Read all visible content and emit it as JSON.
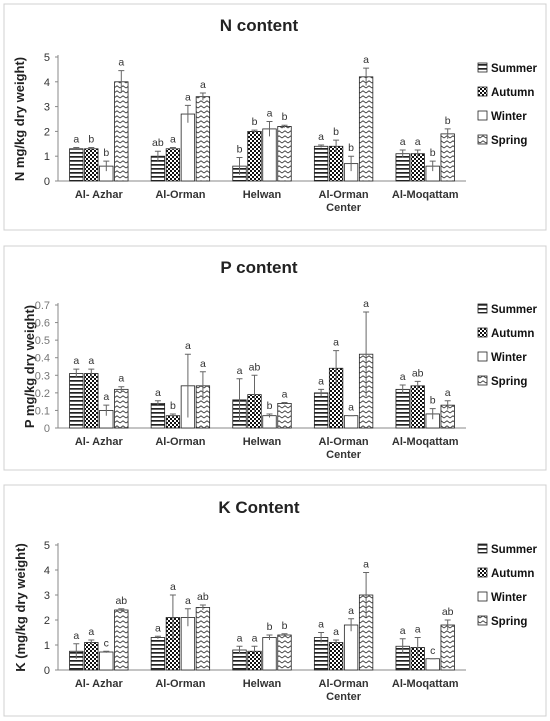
{
  "series_styles": [
    "hstripe",
    "checker",
    "blank",
    "zigzag"
  ],
  "chart_data": [
    {
      "type": "bar",
      "title": "N content",
      "ylabel": "N mg/kg dry weight)",
      "categories": [
        "Al- Azhar",
        "Al-Orman",
        "Helwan",
        "Al-Orman Center",
        "Al-Moqattam"
      ],
      "category_lines": [
        [
          "Al- Azhar"
        ],
        [
          "Al-Orman"
        ],
        [
          "Helwan"
        ],
        [
          "Al-Orman",
          "Center"
        ],
        [
          "Al-Moqattam"
        ]
      ],
      "ylim": [
        0,
        5
      ],
      "ticks": [
        "0",
        "1",
        "2",
        "3",
        "4",
        "5"
      ],
      "tick_values": [
        0,
        1,
        2,
        3,
        4,
        5
      ],
      "legend_position": "right",
      "series": [
        {
          "name": "Summer",
          "values": [
            1.3,
            1.0,
            0.6,
            1.4,
            1.1
          ],
          "errors": [
            0.05,
            0.2,
            0.35,
            0.05,
            0.15
          ],
          "labels": [
            "a",
            "ab",
            "b",
            "a",
            "a"
          ]
        },
        {
          "name": "Autumn",
          "values": [
            1.3,
            1.3,
            2.0,
            1.4,
            1.1
          ],
          "errors": [
            0.05,
            0.05,
            0.05,
            0.25,
            0.15
          ],
          "labels": [
            "b",
            "a",
            "b",
            "b",
            "a"
          ]
        },
        {
          "name": "Winter",
          "values": [
            0.6,
            2.7,
            2.1,
            0.7,
            0.6
          ],
          "errors": [
            0.2,
            0.35,
            0.3,
            0.3,
            0.2
          ],
          "labels": [
            "b",
            "a",
            "a",
            "b",
            "b"
          ]
        },
        {
          "name": "Spring",
          "values": [
            4.0,
            3.4,
            2.2,
            4.2,
            1.9
          ],
          "errors": [
            0.45,
            0.15,
            0.05,
            0.35,
            0.2
          ],
          "labels": [
            "a",
            "a",
            "b",
            "a",
            "b"
          ]
        }
      ]
    },
    {
      "type": "bar",
      "title": "P content",
      "ylabel": "P mg/kg dry weight)",
      "categories": [
        "Al- Azhar",
        "Al-Orman",
        "Helwan",
        "Al-Orman Center",
        "Al-Moqattam"
      ],
      "category_lines": [
        [
          "Al- Azhar"
        ],
        [
          "Al-Orman"
        ],
        [
          "Helwan"
        ],
        [
          "Al-Orman",
          "Center"
        ],
        [
          "Al-Moqattam"
        ]
      ],
      "ylim": [
        0,
        0.7
      ],
      "ticks": [
        "0",
        "0.1",
        "0.2",
        "0.3",
        "0.4",
        "0.5",
        "0.6",
        "0.7"
      ],
      "tick_values": [
        0,
        0.1,
        0.2,
        0.3,
        0.4,
        0.5,
        0.6,
        0.7
      ],
      "legend_position": "right",
      "series": [
        {
          "name": "Summer",
          "values": [
            0.31,
            0.14,
            0.16,
            0.2,
            0.22
          ],
          "errors": [
            0.025,
            0.015,
            0.12,
            0.02,
            0.025
          ],
          "labels": [
            "a",
            "a",
            "a",
            "a",
            "a"
          ]
        },
        {
          "name": "Autumn",
          "values": [
            0.31,
            0.07,
            0.19,
            0.34,
            0.24
          ],
          "errors": [
            0.025,
            0.01,
            0.11,
            0.1,
            0.025
          ],
          "labels": [
            "a",
            "b",
            "ab",
            "a",
            "ab"
          ]
        },
        {
          "name": "Winter",
          "values": [
            0.1,
            0.24,
            0.07,
            0.07,
            0.08
          ],
          "errors": [
            0.03,
            0.18,
            0.01,
            0.0,
            0.03
          ],
          "labels": [
            "a",
            "a",
            "b",
            "a",
            "b"
          ]
        },
        {
          "name": "Spring",
          "values": [
            0.22,
            0.24,
            0.14,
            0.42,
            0.13
          ],
          "errors": [
            0.015,
            0.08,
            0.005,
            0.24,
            0.025
          ],
          "labels": [
            "a",
            "a",
            "a",
            "a",
            "a"
          ]
        }
      ]
    },
    {
      "type": "bar",
      "title": "K Content",
      "ylabel": "K (mg/kg dry weight)",
      "categories": [
        "Al- Azhar",
        "Al-Orman",
        "Helwan",
        "Al-Orman Center",
        "Al-Moqattam"
      ],
      "category_lines": [
        [
          "Al- Azhar"
        ],
        [
          "Al-Orman"
        ],
        [
          "Helwan"
        ],
        [
          "Al-Orman",
          "Center"
        ],
        [
          "Al-Moqattam"
        ]
      ],
      "ylim": [
        0,
        5
      ],
      "ticks": [
        "0",
        "1",
        "2",
        "3",
        "4",
        "5"
      ],
      "tick_values": [
        0,
        1,
        2,
        3,
        4,
        5
      ],
      "legend_position": "right",
      "series": [
        {
          "name": "Summer",
          "values": [
            0.75,
            1.3,
            0.8,
            1.3,
            0.95
          ],
          "errors": [
            0.3,
            0.05,
            0.15,
            0.2,
            0.3
          ],
          "labels": [
            "a",
            "a",
            "a",
            "a",
            "a"
          ]
        },
        {
          "name": "Autumn",
          "values": [
            1.1,
            2.1,
            0.75,
            1.1,
            0.9
          ],
          "errors": [
            0.1,
            0.9,
            0.2,
            0.1,
            0.4
          ],
          "labels": [
            "a",
            "a",
            "a",
            "a",
            "a"
          ]
        },
        {
          "name": "Winter",
          "values": [
            0.72,
            2.1,
            1.3,
            1.8,
            0.45
          ],
          "errors": [
            0.03,
            0.35,
            0.1,
            0.25,
            0.0
          ],
          "labels": [
            "c",
            "a",
            "b",
            "a",
            "c"
          ]
        },
        {
          "name": "Spring",
          "values": [
            2.4,
            2.5,
            1.4,
            3.0,
            1.8
          ],
          "errors": [
            0.05,
            0.1,
            0.05,
            0.9,
            0.2
          ],
          "labels": [
            "ab",
            "ab",
            "b",
            "a",
            "ab"
          ]
        }
      ]
    }
  ]
}
